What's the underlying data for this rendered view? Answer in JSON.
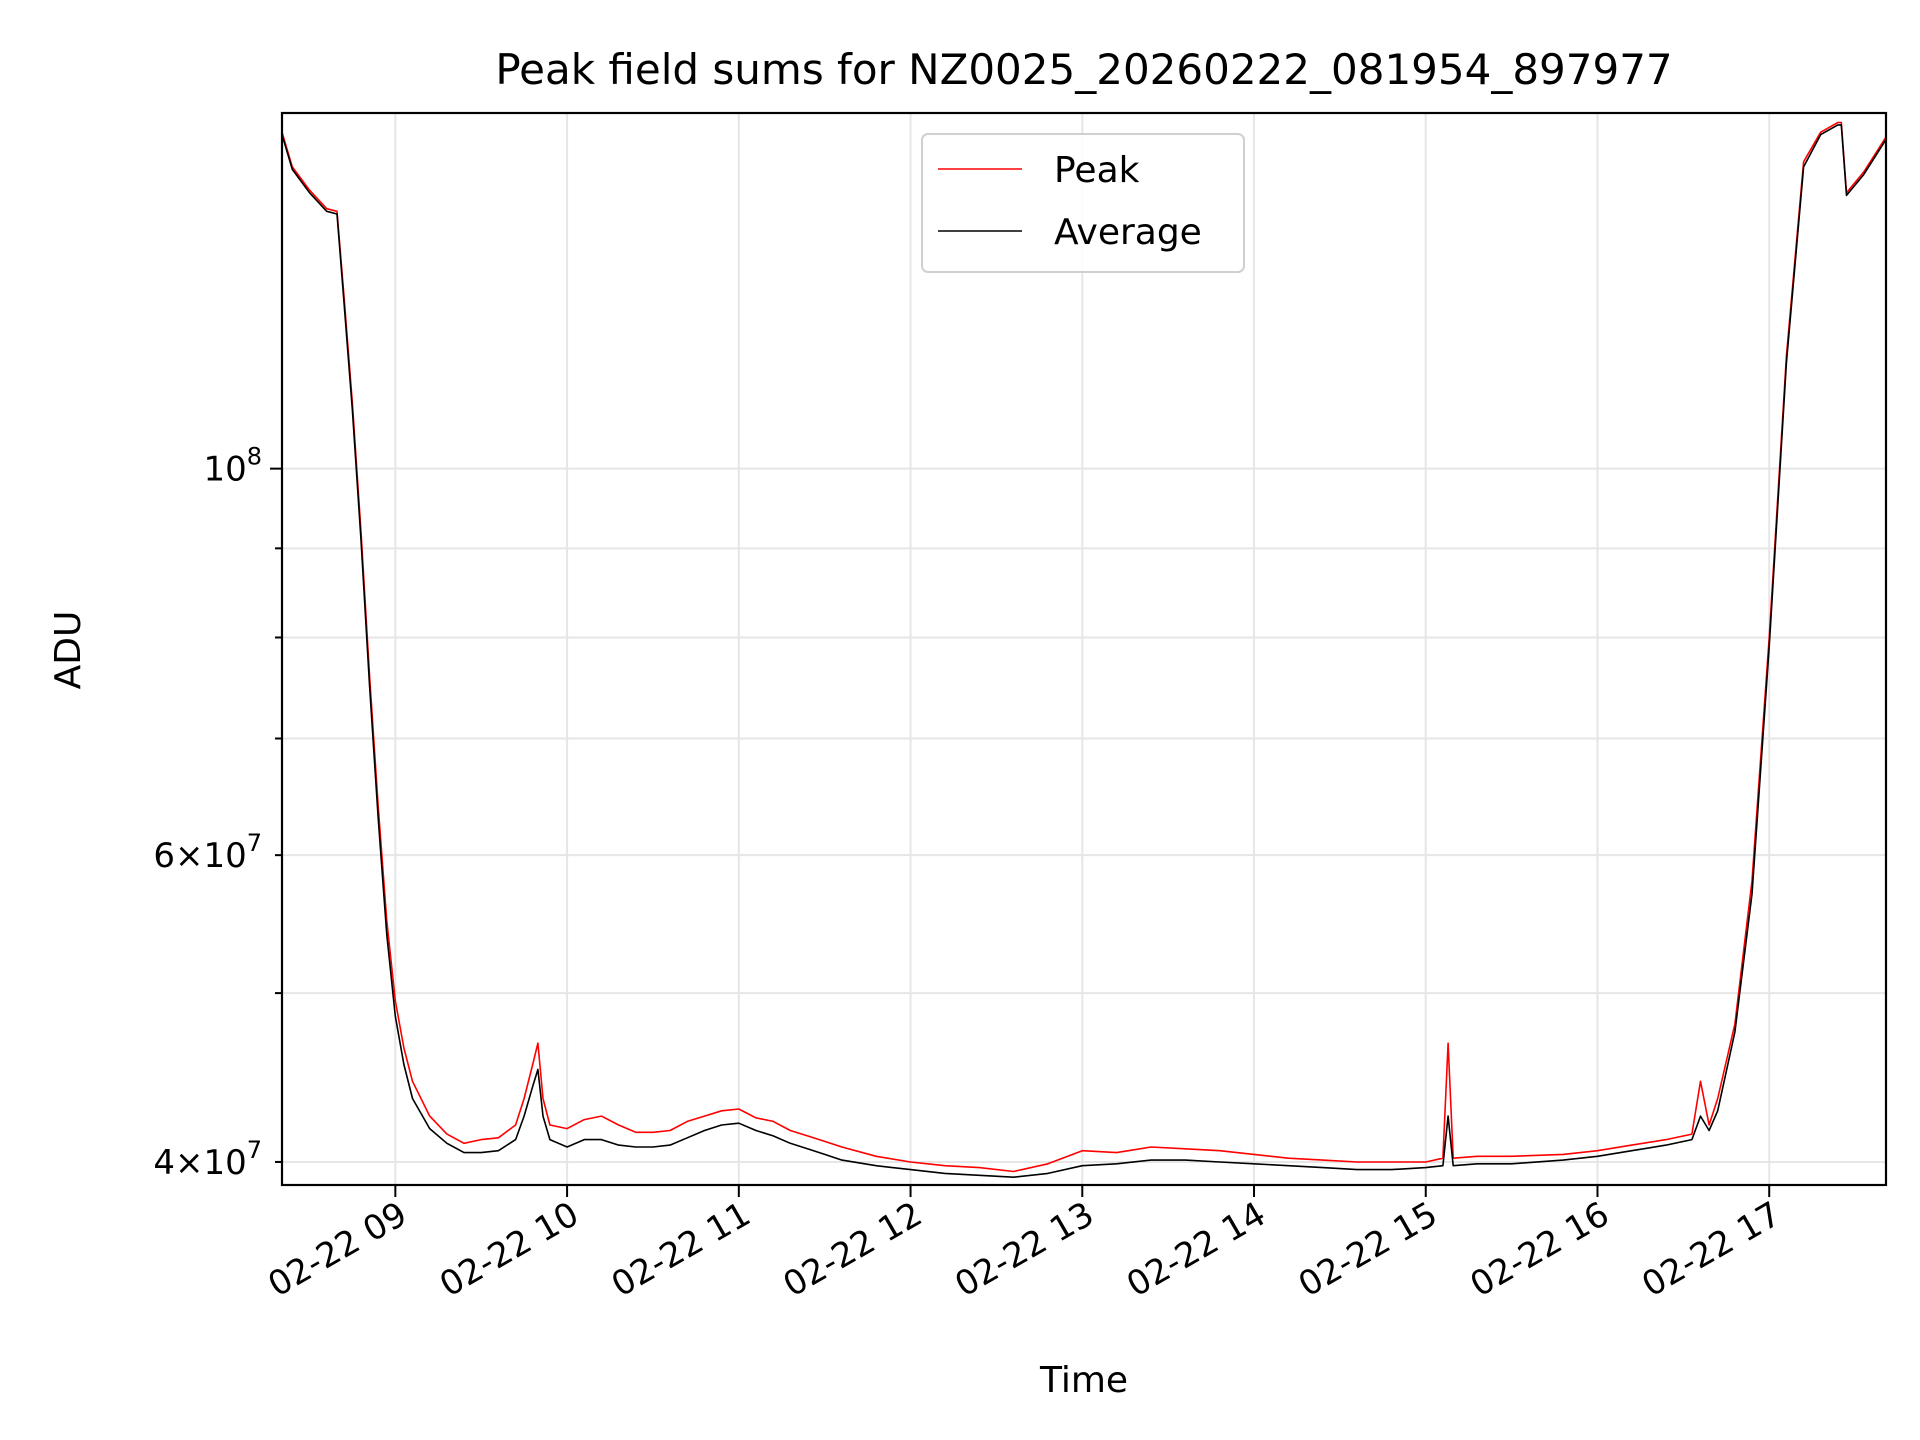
{
  "chart_data": {
    "type": "line",
    "title": "Peak field sums for NZ0025_20260222_081954_897977",
    "xlabel": "Time",
    "ylabel": "ADU",
    "yscale": "log",
    "ylim": [
      38800000,
      160000000
    ],
    "xlim_hours": [
      8.34,
      17.68
    ],
    "grid": true,
    "legend_position": "top-center",
    "x_ticks": [
      {
        "hour": 9,
        "label": "02-22 09"
      },
      {
        "hour": 10,
        "label": "02-22 10"
      },
      {
        "hour": 11,
        "label": "02-22 11"
      },
      {
        "hour": 12,
        "label": "02-22 12"
      },
      {
        "hour": 13,
        "label": "02-22 13"
      },
      {
        "hour": 14,
        "label": "02-22 14"
      },
      {
        "hour": 15,
        "label": "02-22 15"
      },
      {
        "hour": 16,
        "label": "02-22 16"
      },
      {
        "hour": 17,
        "label": "02-22 17"
      }
    ],
    "y_ticks_major": [
      {
        "value": 100000000,
        "base": "10",
        "exp": "8"
      }
    ],
    "y_ticks_minor": [
      {
        "value": 40000000,
        "mant": "4",
        "base": "10",
        "exp": "7"
      },
      {
        "value": 50000000,
        "mant": "",
        "base": "",
        "exp": ""
      },
      {
        "value": 60000000,
        "mant": "6",
        "base": "10",
        "exp": "7"
      },
      {
        "value": 70000000,
        "mant": "",
        "base": "",
        "exp": ""
      },
      {
        "value": 80000000,
        "mant": "",
        "base": "",
        "exp": ""
      },
      {
        "value": 90000000,
        "mant": "",
        "base": "",
        "exp": ""
      }
    ],
    "series": [
      {
        "name": "Peak",
        "color": "#ff0000",
        "x_hours": [
          8.34,
          8.4,
          8.5,
          8.6,
          8.66,
          8.7,
          8.75,
          8.8,
          8.85,
          8.9,
          8.95,
          9.0,
          9.05,
          9.1,
          9.2,
          9.3,
          9.4,
          9.5,
          9.6,
          9.7,
          9.75,
          9.8,
          9.83,
          9.86,
          9.9,
          10.0,
          10.1,
          10.2,
          10.3,
          10.4,
          10.5,
          10.6,
          10.7,
          10.8,
          10.9,
          11.0,
          11.1,
          11.2,
          11.3,
          11.4,
          11.5,
          11.6,
          11.8,
          12.0,
          12.2,
          12.4,
          12.6,
          12.8,
          13.0,
          13.2,
          13.4,
          13.6,
          13.8,
          14.0,
          14.2,
          14.4,
          14.6,
          14.8,
          15.0,
          15.1,
          15.13,
          15.16,
          15.3,
          15.5,
          15.8,
          16.0,
          16.2,
          16.4,
          16.55,
          16.6,
          16.65,
          16.7,
          16.8,
          16.9,
          17.0,
          17.1,
          17.2,
          17.3,
          17.4,
          17.42,
          17.45,
          17.55,
          17.68
        ],
        "values": [
          156000000,
          149000000,
          144500000,
          141000000,
          140500000,
          126000000,
          109000000,
          92000000,
          76000000,
          64000000,
          55000000,
          49500000,
          46500000,
          44500000,
          42500000,
          41500000,
          41000000,
          41200000,
          41300000,
          42000000,
          43500000,
          45500000,
          46800000,
          43500000,
          42000000,
          41800000,
          42300000,
          42500000,
          42000000,
          41600000,
          41600000,
          41700000,
          42200000,
          42500000,
          42800000,
          42900000,
          42400000,
          42200000,
          41700000,
          41400000,
          41100000,
          40800000,
          40300000,
          40000000,
          39800000,
          39700000,
          39500000,
          39900000,
          40600000,
          40500000,
          40800000,
          40700000,
          40600000,
          40400000,
          40200000,
          40100000,
          40000000,
          40000000,
          40000000,
          40200000,
          46800000,
          40200000,
          40300000,
          40300000,
          40400000,
          40600000,
          40900000,
          41200000,
          41500000,
          44500000,
          42000000,
          43500000,
          48000000,
          58000000,
          80000000,
          116000000,
          150000000,
          156000000,
          158000000,
          158000000,
          144000000,
          148000000,
          155000000
        ]
      },
      {
        "name": "Average",
        "color": "#000000",
        "x_hours": [
          8.34,
          8.4,
          8.5,
          8.6,
          8.66,
          8.7,
          8.75,
          8.8,
          8.85,
          8.9,
          8.95,
          9.0,
          9.05,
          9.1,
          9.2,
          9.3,
          9.4,
          9.5,
          9.6,
          9.7,
          9.75,
          9.8,
          9.83,
          9.86,
          9.9,
          10.0,
          10.1,
          10.2,
          10.3,
          10.4,
          10.5,
          10.6,
          10.7,
          10.8,
          10.9,
          11.0,
          11.1,
          11.2,
          11.3,
          11.4,
          11.5,
          11.6,
          11.8,
          12.0,
          12.2,
          12.4,
          12.6,
          12.8,
          13.0,
          13.2,
          13.4,
          13.6,
          13.8,
          14.0,
          14.2,
          14.4,
          14.6,
          14.8,
          15.0,
          15.1,
          15.13,
          15.16,
          15.3,
          15.5,
          15.8,
          16.0,
          16.2,
          16.4,
          16.55,
          16.6,
          16.65,
          16.7,
          16.8,
          16.9,
          17.0,
          17.1,
          17.2,
          17.3,
          17.4,
          17.42,
          17.45,
          17.55,
          17.68
        ],
        "values": [
          155500000,
          148500000,
          144000000,
          140500000,
          140000000,
          125000000,
          108000000,
          91000000,
          75000000,
          63000000,
          54000000,
          48500000,
          45500000,
          43500000,
          41800000,
          41000000,
          40500000,
          40500000,
          40600000,
          41200000,
          42500000,
          44200000,
          45200000,
          42500000,
          41200000,
          40800000,
          41200000,
          41200000,
          40900000,
          40800000,
          40800000,
          40900000,
          41300000,
          41700000,
          42000000,
          42100000,
          41700000,
          41400000,
          41000000,
          40700000,
          40400000,
          40100000,
          39800000,
          39600000,
          39400000,
          39300000,
          39200000,
          39400000,
          39800000,
          39900000,
          40100000,
          40100000,
          40000000,
          39900000,
          39800000,
          39700000,
          39600000,
          39600000,
          39700000,
          39800000,
          42500000,
          39800000,
          39900000,
          39900000,
          40100000,
          40300000,
          40600000,
          40900000,
          41200000,
          42500000,
          41700000,
          42800000,
          47500000,
          57000000,
          79000000,
          115000000,
          149000000,
          155500000,
          157500000,
          157500000,
          143500000,
          147500000,
          154500000
        ]
      }
    ]
  }
}
